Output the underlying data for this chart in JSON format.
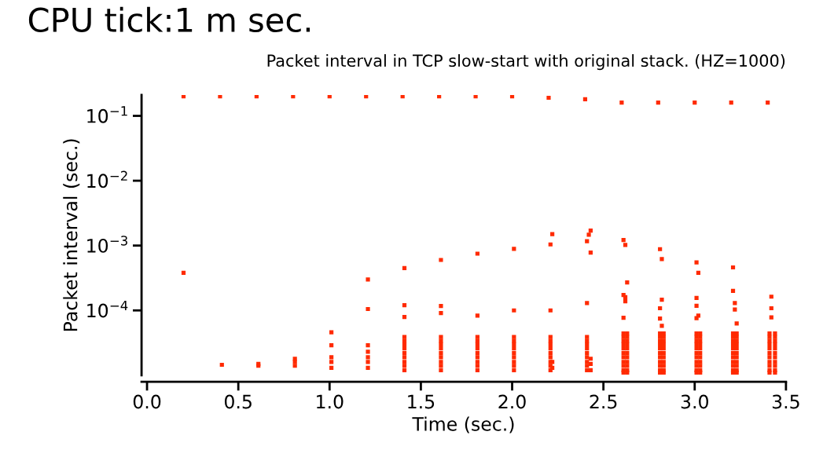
{
  "chart_data": {
    "type": "scatter",
    "title": "CPU tick:1 m sec.",
    "subtitle": "Packet interval in TCP slow-start with original stack. (HZ=1000)",
    "xlabel": "Time (sec.)",
    "ylabel": "Packet interval (sec.)",
    "log": "y",
    "grid": false,
    "marker": "square",
    "xlim": [
      -0.03,
      3.5
    ],
    "xticks": [
      {
        "value": 0,
        "label": "0.0"
      },
      {
        "value": 0.5,
        "label": "0.5"
      },
      {
        "value": 1,
        "label": "1.0"
      },
      {
        "value": 1.5,
        "label": "1.5"
      },
      {
        "value": 2,
        "label": "2.0"
      },
      {
        "value": 2.5,
        "label": "2.5"
      },
      {
        "value": 3,
        "label": "3.0"
      },
      {
        "value": 3.5,
        "label": "3.5"
      }
    ],
    "ylim": [
      1e-05,
      0.21
    ],
    "yticks": [
      {
        "value": 0.1,
        "label": "10$^{−1}$"
      },
      {
        "value": 0.01,
        "label": "10$^{−2}$"
      },
      {
        "value": 0.001,
        "label": "10$^{−3}$"
      },
      {
        "value": 0.0001,
        "label": "10$^{−4}$"
      }
    ],
    "series": [
      {
        "color": "#ff2a00",
        "x": [
          0.2,
          0.4,
          0.6,
          0.8,
          1.0,
          1.2,
          1.4,
          1.6,
          1.8,
          2.0,
          2.2,
          2.4,
          2.6,
          2.8,
          3.0,
          3.2,
          3.4,
          0.2,
          0.41,
          0.61,
          0.61,
          0.81,
          0.81,
          0.81,
          1.01,
          1.01,
          1.01,
          1.01,
          1.01,
          1.21,
          1.21,
          1.21,
          1.21,
          1.21,
          1.21,
          1.21,
          1.41,
          1.41,
          1.41,
          1.41,
          1.41,
          1.41,
          1.41,
          1.41,
          1.41,
          1.41,
          1.41,
          1.41,
          1.61,
          1.61,
          1.61,
          1.61,
          1.61,
          1.61,
          1.61,
          1.61,
          1.61,
          1.61,
          1.61,
          1.61,
          1.81,
          1.81,
          1.81,
          1.81,
          1.81,
          1.81,
          1.81,
          1.81,
          1.81,
          1.81,
          1.81,
          2.01,
          2.01,
          2.01,
          2.01,
          2.01,
          2.01,
          2.01,
          2.01,
          2.01,
          2.01,
          2.01,
          2.22,
          2.21,
          2.21,
          2.21,
          2.21,
          2.21,
          2.21,
          2.21,
          2.21,
          2.21,
          2.21,
          2.21,
          2.22,
          2.22,
          2.43,
          2.42,
          2.41,
          2.43,
          2.41,
          2.41,
          2.41,
          2.41,
          2.41,
          2.41,
          2.41,
          2.41,
          2.41,
          2.41,
          2.43,
          2.43,
          2.43,
          2.61,
          2.62,
          2.63,
          2.61,
          2.62,
          2.62,
          2.61,
          2.61,
          2.61,
          2.61,
          2.61,
          2.61,
          2.61,
          2.61,
          2.61,
          2.61,
          2.61,
          2.61,
          2.63,
          2.63,
          2.63,
          2.63,
          2.63,
          2.63,
          2.63,
          2.63,
          2.63,
          2.63,
          2.63,
          2.81,
          2.82,
          2.82,
          2.81,
          2.81,
          2.82,
          2.81,
          2.81,
          2.81,
          2.81,
          2.81,
          2.81,
          2.81,
          2.81,
          2.81,
          2.81,
          2.81,
          2.83,
          2.83,
          2.83,
          2.83,
          2.83,
          2.83,
          2.83,
          2.83,
          2.83,
          2.83,
          2.83,
          3.01,
          3.02,
          3.01,
          3.01,
          3.02,
          3.01,
          3.01,
          3.01,
          3.01,
          3.01,
          3.01,
          3.01,
          3.01,
          3.01,
          3.01,
          3.01,
          3.01,
          3.03,
          3.03,
          3.03,
          3.03,
          3.03,
          3.03,
          3.03,
          3.03,
          3.03,
          3.03,
          3.03,
          3.21,
          3.21,
          3.22,
          3.22,
          3.23,
          3.21,
          3.21,
          3.21,
          3.21,
          3.21,
          3.21,
          3.21,
          3.21,
          3.21,
          3.21,
          3.21,
          3.23,
          3.23,
          3.23,
          3.23,
          3.23,
          3.23,
          3.23,
          3.23,
          3.23,
          3.23,
          3.23,
          3.42,
          3.42,
          3.42,
          3.41,
          3.41,
          3.41,
          3.41,
          3.41,
          3.41,
          3.41,
          3.41,
          3.41,
          3.41,
          3.41,
          3.44,
          3.44,
          3.44,
          3.44,
          3.44,
          3.44,
          3.44,
          3.44,
          3.44,
          3.44,
          3.44
        ],
        "values": [
          0.2,
          0.2,
          0.2,
          0.2,
          0.2,
          0.2,
          0.2,
          0.2,
          0.2,
          0.2,
          0.19,
          0.18,
          0.16,
          0.16,
          0.16,
          0.16,
          0.16,
          0.00038,
          1.45e-05,
          1.4e-05,
          1.5e-05,
          1.8e-05,
          1.6e-05,
          1.4e-05,
          4.6e-05,
          2.9e-05,
          1.9e-05,
          1.6e-05,
          1.3e-05,
          0.0003,
          0.000105,
          2.9e-05,
          2.3e-05,
          1.9e-05,
          1.6e-05,
          1.3e-05,
          0.00045,
          0.00012,
          7.9e-05,
          3.9e-05,
          3.4e-05,
          3e-05,
          2.6e-05,
          2.2e-05,
          1.9e-05,
          1.6e-05,
          1.4e-05,
          1.2e-05,
          0.0006,
          0.000117,
          9.1e-05,
          3.9e-05,
          3.4e-05,
          3e-05,
          2.6e-05,
          2.2e-05,
          1.9e-05,
          1.6e-05,
          1.4e-05,
          1.2e-05,
          0.00075,
          8.3e-05,
          3.9e-05,
          3.4e-05,
          3e-05,
          2.6e-05,
          2.2e-05,
          1.9e-05,
          1.6e-05,
          1.4e-05,
          1.2e-05,
          0.00089,
          0.0001,
          3.9e-05,
          3.4e-05,
          3e-05,
          2.6e-05,
          2.2e-05,
          1.9e-05,
          1.6e-05,
          1.4e-05,
          1.2e-05,
          0.0015,
          0.00104,
          0.0001,
          3.9e-05,
          3.4e-05,
          3e-05,
          2.6e-05,
          2.2e-05,
          1.9e-05,
          1.6e-05,
          1.4e-05,
          1.2e-05,
          1.6e-05,
          1.3e-05,
          0.0017,
          0.00147,
          0.00117,
          0.00078,
          0.00013,
          3.9e-05,
          3.4e-05,
          3e-05,
          2.6e-05,
          2.2e-05,
          1.9e-05,
          1.6e-05,
          1.4e-05,
          1.2e-05,
          1.8e-05,
          1.5e-05,
          1.2e-05,
          0.00122,
          0.00102,
          0.00027,
          0.000173,
          0.00016,
          0.000138,
          7.7e-05,
          4.4e-05,
          3.9e-05,
          3.4e-05,
          3e-05,
          2.6e-05,
          2.2e-05,
          1.9e-05,
          1.6e-05,
          1.4e-05,
          1.2e-05,
          1.1e-05,
          4.4e-05,
          3.9e-05,
          3.4e-05,
          3e-05,
          2.6e-05,
          2.2e-05,
          1.9e-05,
          1.6e-05,
          1.4e-05,
          1.2e-05,
          1.1e-05,
          0.00088,
          0.00062,
          0.000146,
          0.000108,
          7.5e-05,
          5.8e-05,
          4.4e-05,
          3.9e-05,
          3.4e-05,
          3e-05,
          2.6e-05,
          2.2e-05,
          1.9e-05,
          1.6e-05,
          1.4e-05,
          1.2e-05,
          1.1e-05,
          4.4e-05,
          3.9e-05,
          3.4e-05,
          3e-05,
          2.6e-05,
          2.2e-05,
          1.9e-05,
          1.6e-05,
          1.4e-05,
          1.2e-05,
          1.1e-05,
          0.00055,
          0.00038,
          0.000156,
          0.000118,
          8.3e-05,
          7.6e-05,
          4.4e-05,
          3.9e-05,
          3.4e-05,
          3e-05,
          2.6e-05,
          2.2e-05,
          1.9e-05,
          1.6e-05,
          1.4e-05,
          1.2e-05,
          1.1e-05,
          4.4e-05,
          3.9e-05,
          3.4e-05,
          3e-05,
          2.6e-05,
          2.2e-05,
          1.9e-05,
          1.6e-05,
          1.4e-05,
          1.2e-05,
          1.1e-05,
          0.00046,
          0.0002,
          0.00013,
          0.000103,
          6.3e-05,
          4.4e-05,
          3.9e-05,
          3.4e-05,
          3e-05,
          2.6e-05,
          2.2e-05,
          1.9e-05,
          1.6e-05,
          1.4e-05,
          1.2e-05,
          1.1e-05,
          4.4e-05,
          3.9e-05,
          3.4e-05,
          3e-05,
          2.6e-05,
          2.2e-05,
          1.9e-05,
          1.6e-05,
          1.4e-05,
          1.2e-05,
          1.1e-05,
          0.000163,
          0.000108,
          7.8e-05,
          4.4e-05,
          3.9e-05,
          3.4e-05,
          3e-05,
          2.6e-05,
          2.2e-05,
          1.9e-05,
          1.6e-05,
          1.4e-05,
          1.2e-05,
          1.1e-05,
          4.4e-05,
          3.9e-05,
          3.4e-05,
          3e-05,
          2.6e-05,
          2.2e-05,
          1.9e-05,
          1.6e-05,
          1.4e-05,
          1.2e-05,
          1.1e-05
        ]
      }
    ]
  }
}
